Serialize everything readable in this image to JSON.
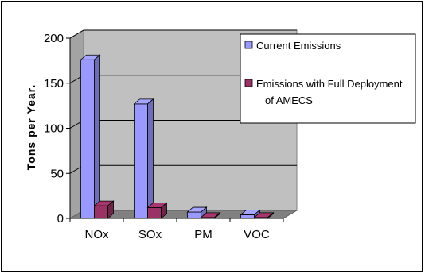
{
  "chart_data": {
    "type": "bar",
    "title": "",
    "xlabel": "",
    "ylabel": "Tons per Year.",
    "categories": [
      "NOx",
      "SOx",
      "PM",
      "VOC"
    ],
    "yticks": [
      "0",
      "50",
      "100",
      "150",
      "200"
    ],
    "ylim": [
      0,
      200
    ],
    "grid": true,
    "legend_position": "right",
    "series": [
      {
        "name": "Current Emissions",
        "values": [
          176,
          127,
          7,
          4
        ],
        "color": "#9999ff"
      },
      {
        "name": "Emissions with Full Deployment of AMECS",
        "values": [
          14,
          12,
          1,
          1
        ],
        "color": "#993366"
      }
    ],
    "legend_lines": [
      [
        "Current Emissions"
      ],
      [
        "Emissions with Full Deployment",
        "of AMECS"
      ]
    ],
    "colors": {
      "wall": "#c0c0c0",
      "floor": "#808080",
      "grid": "#000000"
    }
  }
}
